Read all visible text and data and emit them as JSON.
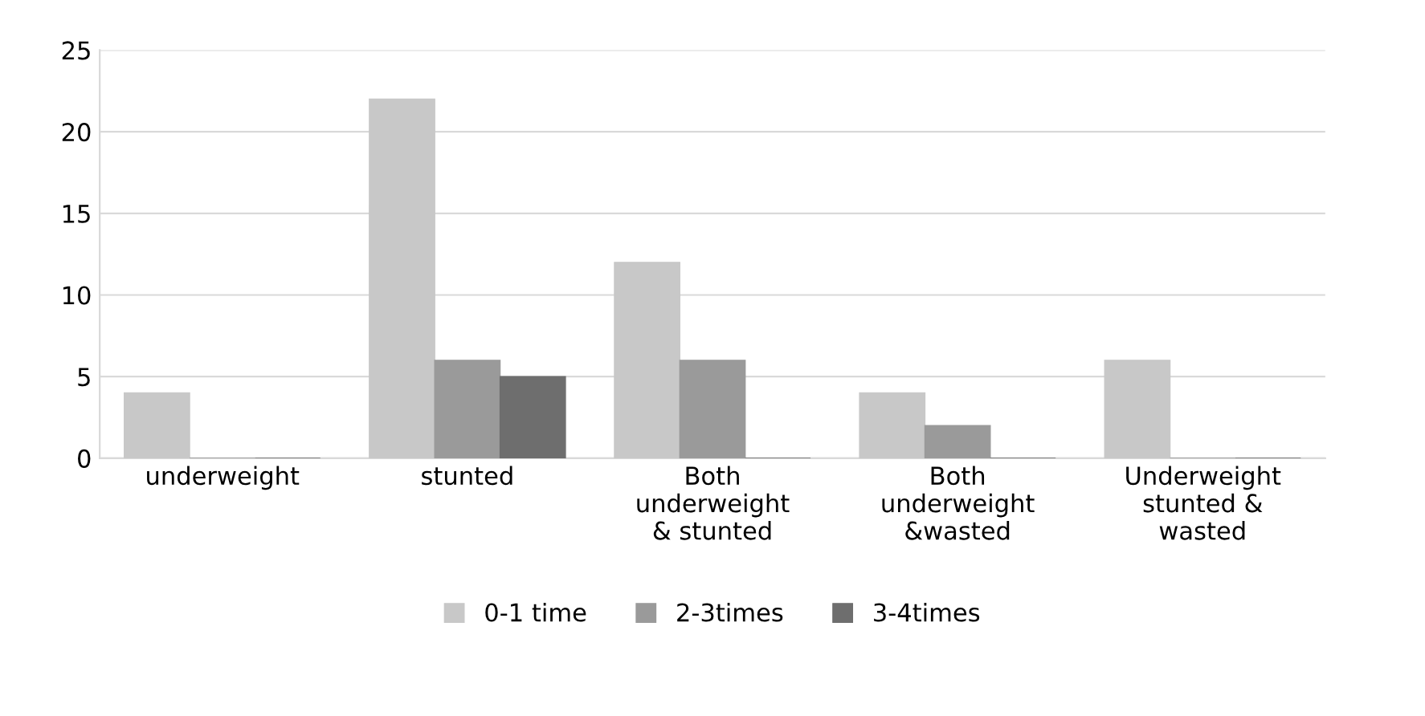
{
  "chart_data": {
    "type": "bar",
    "categories": [
      "underweight",
      "stunted",
      "Both\nunderweight\n& stunted",
      "Both\nunderweight\n&wasted",
      "Underweight\nstunted &\nwasted"
    ],
    "series": [
      {
        "name": "0-1 time",
        "color": "#c8c8c8",
        "values": [
          4,
          22,
          12,
          4,
          6
        ]
      },
      {
        "name": "2-3times",
        "color": "#9a9a9a",
        "values": [
          0,
          6,
          6,
          2,
          0
        ]
      },
      {
        "name": "3-4times",
        "color": "#6e6e6e",
        "values": [
          0,
          5,
          0,
          0,
          0
        ]
      }
    ],
    "ylim": [
      0,
      25
    ],
    "yticks": [
      0,
      5,
      10,
      15,
      20,
      25
    ],
    "grid": "y",
    "legend": "bottom"
  }
}
